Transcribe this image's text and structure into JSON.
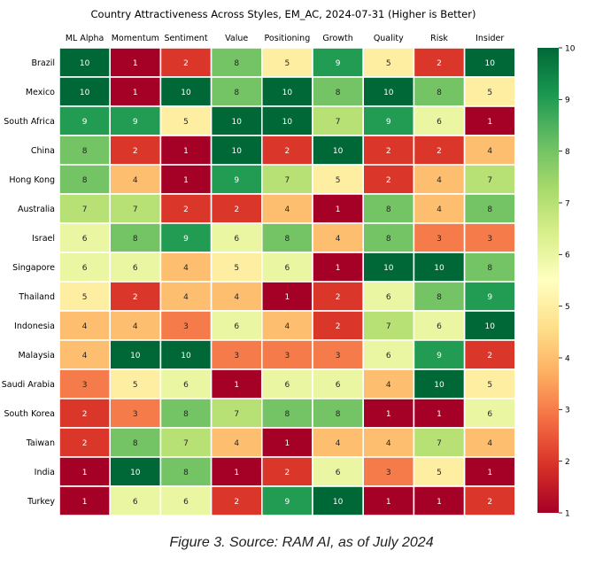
{
  "chart_data": {
    "type": "heatmap",
    "title": "Country Attractiveness Across Styles, EM_AC, 2024-07-31 (Higher is Better)",
    "columns": [
      "ML Alpha",
      "Momentum",
      "Sentiment",
      "Value",
      "Positioning",
      "Growth",
      "Quality",
      "Risk",
      "Insider"
    ],
    "rows": [
      "Brazil",
      "Mexico",
      "South Africa",
      "China",
      "Hong Kong",
      "Australia",
      "Israel",
      "Singapore",
      "Thailand",
      "Indonesia",
      "Malaysia",
      "Saudi Arabia",
      "South Korea",
      "Taiwan",
      "India",
      "Turkey"
    ],
    "values": [
      [
        10,
        1,
        2,
        8,
        5,
        9,
        5,
        2,
        10
      ],
      [
        10,
        1,
        10,
        8,
        10,
        8,
        10,
        8,
        5
      ],
      [
        9,
        9,
        5,
        10,
        10,
        7,
        9,
        6,
        1
      ],
      [
        8,
        2,
        1,
        10,
        2,
        10,
        2,
        2,
        4
      ],
      [
        8,
        4,
        1,
        9,
        7,
        5,
        2,
        4,
        7
      ],
      [
        7,
        7,
        2,
        2,
        4,
        1,
        8,
        4,
        8
      ],
      [
        6,
        8,
        9,
        6,
        8,
        4,
        8,
        3,
        3
      ],
      [
        6,
        6,
        4,
        5,
        6,
        1,
        10,
        10,
        8
      ],
      [
        5,
        2,
        4,
        4,
        1,
        2,
        6,
        8,
        9
      ],
      [
        4,
        4,
        3,
        6,
        4,
        2,
        7,
        6,
        10
      ],
      [
        4,
        10,
        10,
        3,
        3,
        3,
        6,
        9,
        2
      ],
      [
        3,
        5,
        6,
        1,
        6,
        6,
        4,
        10,
        5
      ],
      [
        2,
        3,
        8,
        7,
        8,
        8,
        1,
        1,
        6
      ],
      [
        2,
        8,
        7,
        4,
        1,
        4,
        4,
        7,
        4
      ],
      [
        1,
        10,
        8,
        1,
        2,
        6,
        3,
        5,
        1
      ],
      [
        1,
        6,
        6,
        2,
        9,
        10,
        1,
        1,
        2
      ]
    ],
    "colorbar": {
      "min": 1,
      "max": 10,
      "ticks": [
        1,
        2,
        3,
        4,
        5,
        6,
        7,
        8,
        9,
        10
      ],
      "colormap": "RdYlGn"
    }
  },
  "caption": "Figure 3. Source: RAM AI, as of July 2024"
}
